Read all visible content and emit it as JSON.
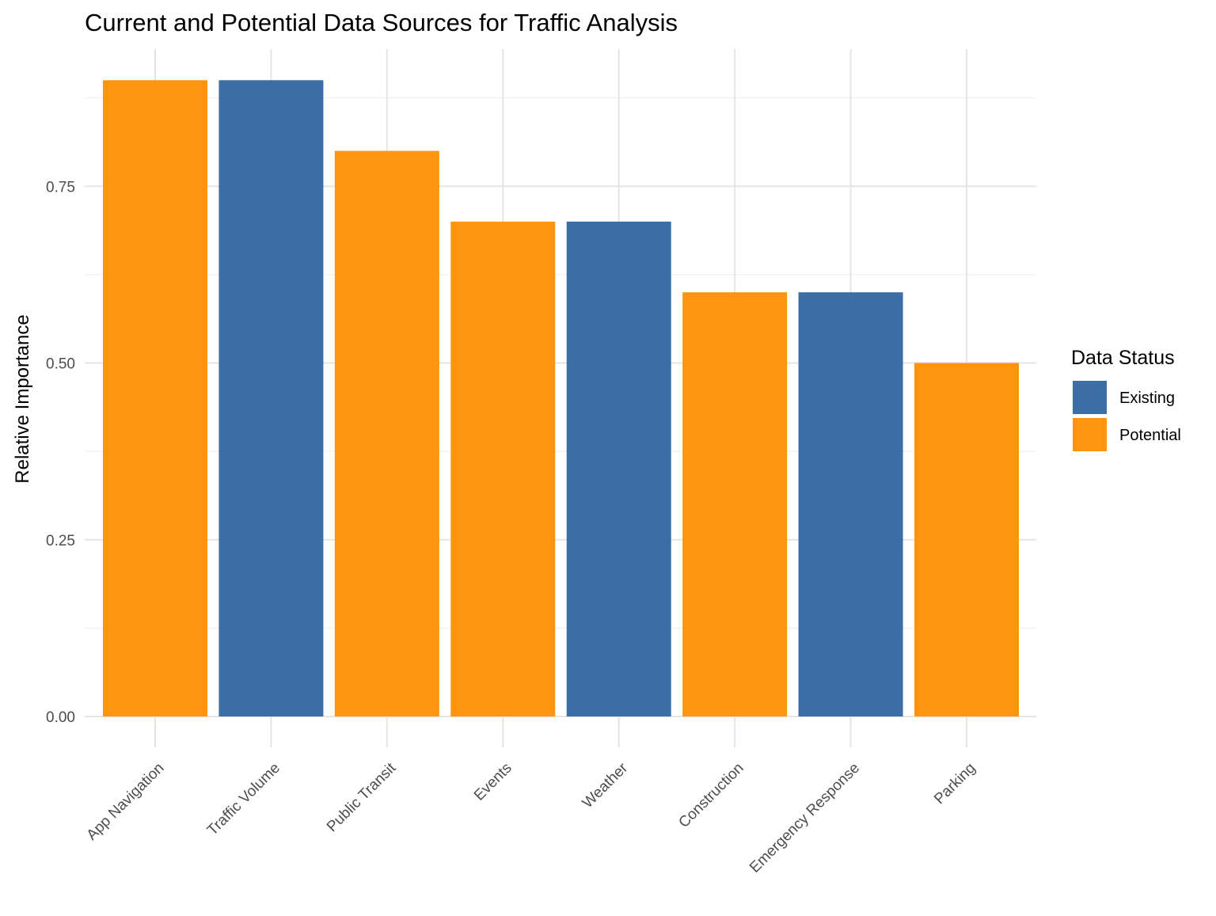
{
  "chart_data": {
    "type": "bar",
    "title": "Current and Potential Data Sources for Traffic Analysis",
    "xlabel": "",
    "ylabel": "Relative Importance",
    "ylim": [
      0,
      0.95
    ],
    "yticks": [
      0,
      0.25,
      0.5,
      0.75
    ],
    "ytick_labels": [
      "0.00",
      "0.25",
      "0.50",
      "0.75"
    ],
    "categories": [
      "App Navigation",
      "Traffic Volume",
      "Public Transit",
      "Events",
      "Weather",
      "Construction",
      "Emergency Response",
      "Parking"
    ],
    "values": [
      0.9,
      0.9,
      0.8,
      0.7,
      0.7,
      0.6,
      0.6,
      0.5
    ],
    "status": [
      "Potential",
      "Existing",
      "Potential",
      "Potential",
      "Existing",
      "Potential",
      "Existing",
      "Potential"
    ],
    "grid": true,
    "legend": {
      "title": "Data Status",
      "placement": "right",
      "entries": [
        {
          "label": "Existing",
          "color": "#3a6ea5"
        },
        {
          "label": "Potential",
          "color": "#ff940e"
        }
      ]
    }
  }
}
